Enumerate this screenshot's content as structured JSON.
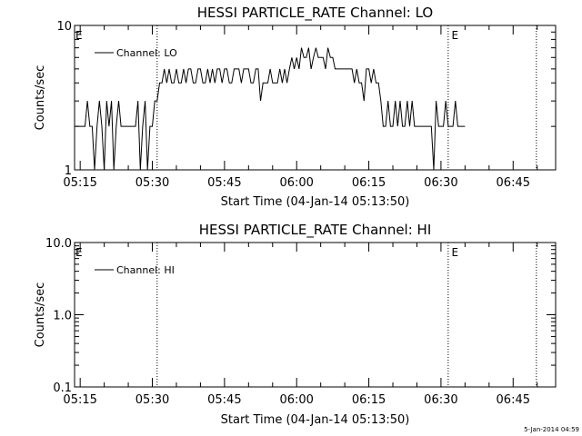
{
  "footer": {
    "timestamp": "5-Jan-2014 04:59"
  },
  "chart_data": [
    {
      "type": "line",
      "title": "HESSI PARTICLE_RATE Channel: LO",
      "xlabel": "Start Time (04-Jan-14 05:13:50)",
      "ylabel": "Counts/sec",
      "y_scale": "log",
      "ylim": [
        1,
        10
      ],
      "yticks": [
        {
          "value": 1,
          "label": "1"
        },
        {
          "value": 10,
          "label": "10"
        }
      ],
      "xlim": [
        "05:13:50",
        "06:53:50"
      ],
      "xticks": [
        "05:15",
        "05:30",
        "05:45",
        "06:00",
        "06:15",
        "06:30",
        "06:45"
      ],
      "legend_position": "top-left",
      "series": [
        {
          "name": "Channel: LO",
          "color": "#000000",
          "x_start": "05:14:00",
          "x_step_seconds": 30,
          "values": [
            2,
            2,
            2,
            2,
            2,
            3,
            2,
            2,
            1,
            2,
            3,
            2,
            1,
            3,
            2,
            3,
            1,
            2,
            3,
            2,
            2,
            2,
            2,
            2,
            2,
            2,
            3,
            1,
            2,
            3,
            1,
            2,
            2,
            3,
            3,
            4,
            4,
            5,
            4,
            5,
            4,
            4,
            5,
            4,
            4,
            5,
            4,
            5,
            5,
            4,
            4,
            5,
            5,
            4,
            4,
            5,
            4,
            5,
            4,
            5,
            5,
            4,
            5,
            5,
            4,
            4,
            5,
            5,
            5,
            4,
            5,
            5,
            5,
            4,
            4,
            5,
            5,
            3,
            4,
            4,
            4,
            5,
            4,
            4,
            4,
            5,
            4,
            5,
            4,
            5,
            6,
            5,
            6,
            5,
            7,
            6,
            6,
            7,
            5,
            6,
            7,
            6,
            6,
            6,
            5,
            7,
            6,
            6,
            5,
            5,
            5,
            5,
            5,
            5,
            5,
            5,
            4,
            5,
            4,
            4,
            3,
            5,
            5,
            4,
            5,
            4,
            4,
            3,
            2,
            2,
            3,
            2,
            2,
            3,
            2,
            3,
            2,
            2,
            3,
            2,
            3,
            2,
            2,
            2,
            2,
            2,
            2,
            2,
            2,
            1,
            3,
            2,
            2,
            2,
            3,
            2,
            2,
            2,
            3,
            2,
            2,
            2,
            2
          ],
          "markers": {
            "E": [
              "05:13:50",
              "06:32:00"
            ],
            "dotted": [
              "05:31:00",
              "06:31:30",
              "06:49:50"
            ]
          }
        }
      ]
    },
    {
      "type": "line",
      "title": "HESSI PARTICLE_RATE Channel: HI",
      "xlabel": "Start Time (04-Jan-14 05:13:50)",
      "ylabel": "Counts/sec",
      "y_scale": "log",
      "ylim": [
        0.1,
        10
      ],
      "yticks": [
        {
          "value": 0.1,
          "label": "0.1"
        },
        {
          "value": 1,
          "label": "1.0"
        },
        {
          "value": 10,
          "label": "10.0"
        }
      ],
      "xlim": [
        "05:13:50",
        "06:53:50"
      ],
      "xticks": [
        "05:15",
        "05:30",
        "05:45",
        "06:00",
        "06:15",
        "06:30",
        "06:45"
      ],
      "legend_position": "top-left",
      "series": [
        {
          "name": "Channel: HI",
          "color": "#000000",
          "values": [],
          "markers": {
            "E": [
              "05:13:50",
              "06:32:00"
            ],
            "dotted": [
              "05:31:00",
              "06:31:30",
              "06:49:50"
            ]
          }
        }
      ]
    }
  ]
}
